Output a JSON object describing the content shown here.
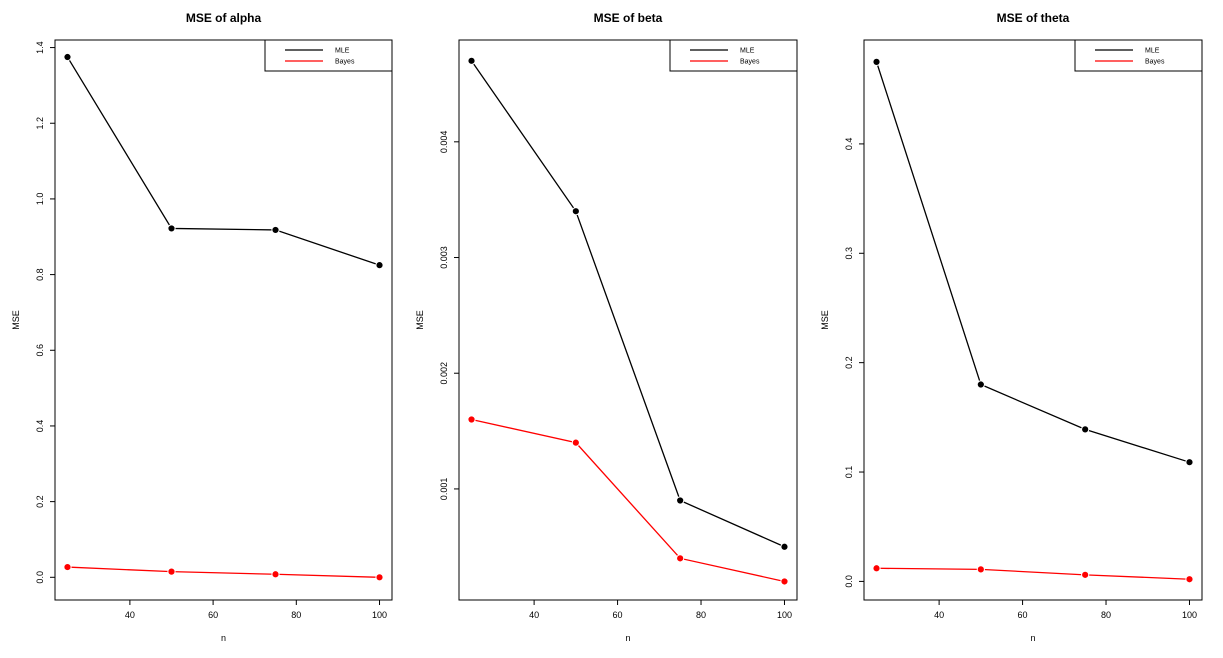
{
  "colors": {
    "MLE": "#000000",
    "Bayes": "#ff0000"
  },
  "chart_data": [
    {
      "type": "line",
      "title": "MSE of alpha",
      "xlabel": "n",
      "ylabel": "MSE",
      "x": [
        25,
        50,
        75,
        100
      ],
      "xlim": [
        22,
        103
      ],
      "ylim": [
        -0.06,
        1.42
      ],
      "xticks": [
        40,
        60,
        80,
        100
      ],
      "yticks": [
        0.0,
        0.2,
        0.4,
        0.6,
        0.8,
        1.0,
        1.2,
        1.4
      ],
      "ytick_labels": [
        "0.0",
        "0.2",
        "0.4",
        "0.6",
        "0.8",
        "1.0",
        "1.2",
        "1.4"
      ],
      "grid": false,
      "legend_position": "top-right",
      "series": [
        {
          "name": "MLE",
          "values": [
            1.375,
            0.922,
            0.918,
            0.825
          ]
        },
        {
          "name": "Bayes",
          "values": [
            0.027,
            0.015,
            0.008,
            0.0
          ]
        }
      ]
    },
    {
      "type": "line",
      "title": "MSE of beta",
      "xlabel": "n",
      "ylabel": "MSE",
      "x": [
        25,
        50,
        75,
        100
      ],
      "xlim": [
        22,
        103
      ],
      "ylim": [
        4e-05,
        0.00488
      ],
      "xticks": [
        40,
        60,
        80,
        100
      ],
      "yticks": [
        0.001,
        0.002,
        0.003,
        0.004
      ],
      "ytick_labels": [
        "0.001",
        "0.002",
        "0.003",
        "0.004"
      ],
      "grid": false,
      "legend_position": "top-right",
      "series": [
        {
          "name": "MLE",
          "values": [
            0.0047,
            0.0034,
            0.0009,
            0.0005
          ]
        },
        {
          "name": "Bayes",
          "values": [
            0.0016,
            0.0014,
            0.0004,
            0.0002
          ]
        }
      ]
    },
    {
      "type": "line",
      "title": "MSE of theta",
      "xlabel": "n",
      "ylabel": "MSE",
      "x": [
        25,
        50,
        75,
        100
      ],
      "xlim": [
        22,
        103
      ],
      "ylim": [
        -0.017,
        0.495
      ],
      "xticks": [
        40,
        60,
        80,
        100
      ],
      "yticks": [
        0.0,
        0.1,
        0.2,
        0.3,
        0.4
      ],
      "ytick_labels": [
        "0.0",
        "0.1",
        "0.2",
        "0.3",
        "0.4"
      ],
      "grid": false,
      "legend_position": "top-right",
      "series": [
        {
          "name": "MLE",
          "values": [
            0.475,
            0.18,
            0.139,
            0.109
          ]
        },
        {
          "name": "Bayes",
          "values": [
            0.012,
            0.011,
            0.006,
            0.002
          ]
        }
      ]
    }
  ]
}
